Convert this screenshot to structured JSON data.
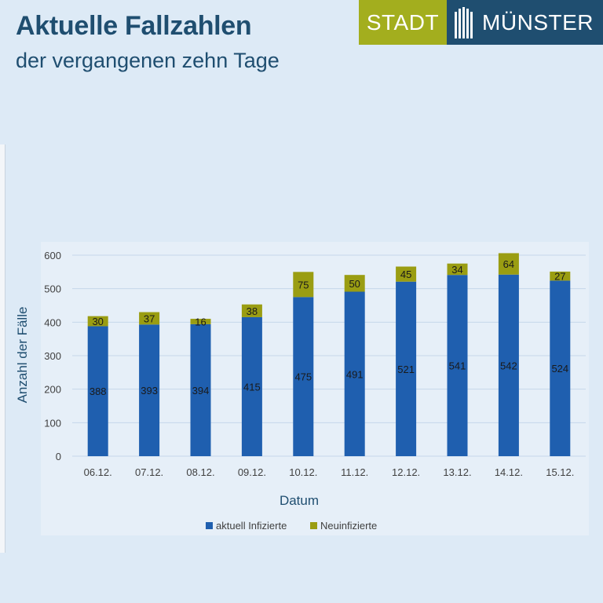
{
  "header": {
    "title": "Aktuelle Fallzahlen",
    "subtitle": "der vergangenen zehn Tage"
  },
  "logo": {
    "left_text": "STADT",
    "right_text": "MÜNSTER",
    "left_color": "#a3ae1e",
    "right_color": "#1f4e70"
  },
  "chart_data": {
    "type": "bar",
    "stacked": true,
    "categories": [
      "06.12.",
      "07.12.",
      "08.12.",
      "09.12.",
      "10.12.",
      "11.12.",
      "12.12.",
      "13.12.",
      "14.12.",
      "15.12."
    ],
    "series": [
      {
        "name": "aktuell Infizierte",
        "color": "#1f5faf",
        "values": [
          388,
          393,
          394,
          415,
          475,
          491,
          521,
          541,
          542,
          524
        ]
      },
      {
        "name": "Neuinfizierte",
        "color": "#9a9d12",
        "values": [
          30,
          37,
          16,
          38,
          75,
          50,
          45,
          34,
          64,
          27
        ]
      }
    ],
    "xlabel": "Datum",
    "ylabel": "Anzahl der Fälle",
    "ylim": [
      0,
      600
    ],
    "yticks": [
      0,
      100,
      200,
      300,
      400,
      500,
      600
    ],
    "grid": true,
    "legend": "bottom"
  }
}
